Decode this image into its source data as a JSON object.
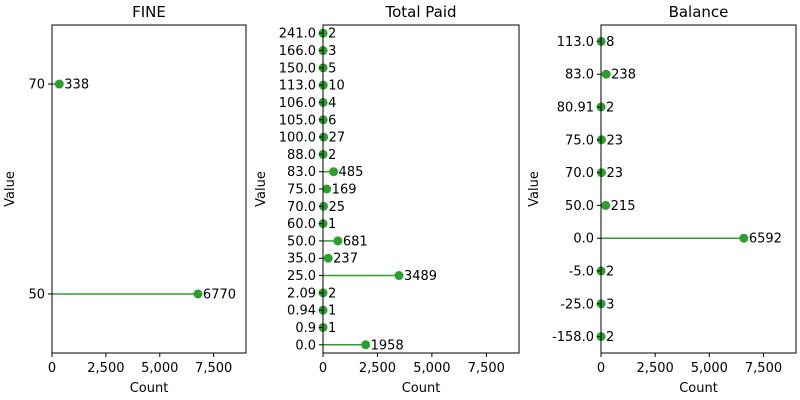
{
  "chart_data": [
    {
      "type": "lollipop",
      "orientation": "horizontal",
      "title": "FINE",
      "xlabel": "Count",
      "ylabel": "Value",
      "xlim": [
        0,
        9000
      ],
      "xticks": [
        "0",
        "2,500",
        "5,000",
        "7,500"
      ],
      "xtick_values": [
        0,
        2500,
        5000,
        7500
      ],
      "categories": [
        "50",
        "70"
      ],
      "values": [
        6770,
        338
      ],
      "data_labels": [
        "6770",
        "338"
      ],
      "color": "#2ca02c",
      "grid": false
    },
    {
      "type": "lollipop",
      "orientation": "horizontal",
      "title": "Total Paid",
      "xlabel": "Count",
      "ylabel": "Value",
      "xlim": [
        0,
        9000
      ],
      "xticks": [
        "0",
        "2,500",
        "5,000",
        "7,500"
      ],
      "xtick_values": [
        0,
        2500,
        5000,
        7500
      ],
      "categories": [
        "0.0",
        "0.9",
        "0.94",
        "2.09",
        "25.0",
        "35.0",
        "50.0",
        "60.0",
        "70.0",
        "75.0",
        "83.0",
        "88.0",
        "100.0",
        "105.0",
        "106.0",
        "113.0",
        "150.0",
        "166.0",
        "241.0"
      ],
      "values": [
        1958,
        1,
        1,
        2,
        3489,
        237,
        681,
        1,
        25,
        169,
        485,
        2,
        27,
        6,
        4,
        10,
        5,
        3,
        2
      ],
      "data_labels": [
        "1958",
        "1",
        "1",
        "2",
        "3489",
        "237",
        "681",
        "1",
        "25",
        "169",
        "485",
        "2",
        "27",
        "6",
        "4",
        "10",
        "5",
        "3",
        "2"
      ],
      "color": "#2ca02c",
      "grid": false
    },
    {
      "type": "lollipop",
      "orientation": "horizontal",
      "title": "Balance",
      "xlabel": "Count",
      "ylabel": "Value",
      "xlim": [
        0,
        9000
      ],
      "xticks": [
        "0",
        "2,500",
        "5,000",
        "7,500"
      ],
      "xtick_values": [
        0,
        2500,
        5000,
        7500
      ],
      "categories": [
        "-158.0",
        "-25.0",
        "-5.0",
        "0.0",
        "50.0",
        "70.0",
        "75.0",
        "80.91",
        "83.0",
        "113.0"
      ],
      "values": [
        2,
        3,
        2,
        6592,
        215,
        23,
        23,
        2,
        238,
        8
      ],
      "data_labels": [
        "2",
        "3",
        "2",
        "6592",
        "215",
        "23",
        "23",
        "2",
        "238",
        "8"
      ],
      "color": "#2ca02c",
      "grid": false
    }
  ]
}
